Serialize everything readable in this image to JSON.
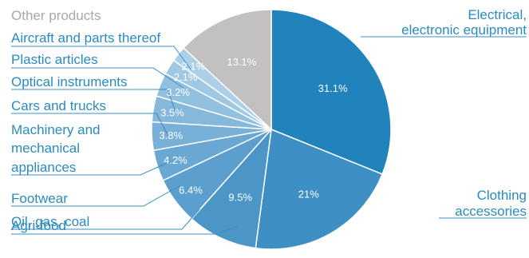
{
  "chart_data": {
    "type": "pie",
    "title": "",
    "slices": [
      {
        "label": "Electrical, electronic equipment",
        "label_lines": [
          "Electrical,",
          "electronic equipment"
        ],
        "value": 31.1,
        "value_label": "31.1%",
        "color": "#2183bb"
      },
      {
        "label": "Clothing accessories",
        "label_lines": [
          "Clothing",
          "accessories"
        ],
        "value": 21,
        "value_label": "21%",
        "color": "#3d8fc4"
      },
      {
        "label": "Agri-food",
        "label_lines": [
          "Agri-food"
        ],
        "value": 9.5,
        "value_label": "9.5%",
        "color": "#4b95c7"
      },
      {
        "label": "Oil, gas, coal",
        "label_lines": [
          "Oil, gas, coal"
        ],
        "value": 6.4,
        "value_label": "6.4%",
        "color": "#5c9fce"
      },
      {
        "label": "Footwear",
        "label_lines": [
          "Footwear"
        ],
        "value": 4.2,
        "value_label": "4.2%",
        "color": "#6aa7d2"
      },
      {
        "label": "Machinery and mechanical appliances",
        "label_lines": [
          "Machinery and",
          "mechanical",
          "appliances"
        ],
        "value": 3.8,
        "value_label": "3.8%",
        "color": "#78b0d7"
      },
      {
        "label": "Cars and trucks",
        "label_lines": [
          "Cars and trucks"
        ],
        "value": 3.5,
        "value_label": "3.5%",
        "color": "#85b8db"
      },
      {
        "label": "Optical instruments",
        "label_lines": [
          "Optical instruments"
        ],
        "value": 3.2,
        "value_label": "3.2%",
        "color": "#92c0df"
      },
      {
        "label": "Plastic articles",
        "label_lines": [
          "Plastic articles"
        ],
        "value": 2.1,
        "value_label": "2.1%",
        "color": "#a0c8e3"
      },
      {
        "label": "Aircraft and parts thereof",
        "label_lines": [
          "Aircraft and parts thereof"
        ],
        "value": 2.1,
        "value_label": "2.1%",
        "color": "#acd0e8"
      },
      {
        "label": "Other products",
        "label_lines": [
          "Other products"
        ],
        "value": 13.1,
        "value_label": "13.1%",
        "color": "#c2c0c0"
      }
    ]
  }
}
